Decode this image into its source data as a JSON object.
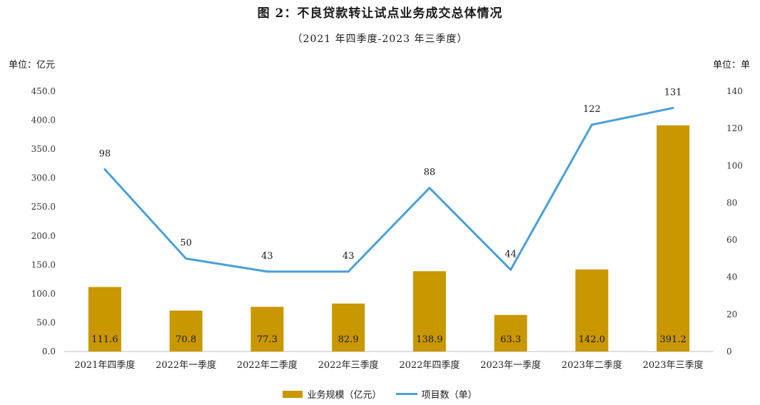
{
  "title": "图 2：不良贷款转让试点业务成交总体情况",
  "subtitle": "（2021 年四季度-2023 年三季度）",
  "unit_left": "单位：亿元",
  "unit_right": "单位：单",
  "colors": {
    "bar": "#C99700",
    "line": "#4A9FD8",
    "axis": "#BFBFBF"
  },
  "chart_data": {
    "type": "bar",
    "categories": [
      "2021年四季度",
      "2022年一季度",
      "2022年二季度",
      "2022年三季度",
      "2022年四季度",
      "2023年一季度",
      "2023年二季度",
      "2023年三季度"
    ],
    "series": [
      {
        "name": "业务规模（亿元）",
        "type": "bar",
        "axis": "left",
        "values": [
          111.6,
          70.8,
          77.3,
          82.9,
          138.9,
          63.3,
          142.0,
          391.2
        ],
        "labels": [
          "111.6",
          "70.8",
          "77.3",
          "82.9",
          "138.9",
          "63.3",
          "142.0",
          "391.2"
        ]
      },
      {
        "name": "项目数（单）",
        "type": "line",
        "axis": "right",
        "values": [
          98,
          50,
          43,
          43,
          88,
          44,
          122,
          131
        ],
        "labels": [
          "98",
          "50",
          "43",
          "43",
          "88",
          "44",
          "122",
          "131"
        ]
      }
    ],
    "y_left": {
      "ylim": [
        0,
        450
      ],
      "ticks": [
        "0.0",
        "50.0",
        "100.0",
        "150.0",
        "200.0",
        "250.0",
        "300.0",
        "350.0",
        "400.0",
        "450.0"
      ]
    },
    "y_right": {
      "ylim": [
        0,
        140
      ],
      "ticks": [
        "0",
        "20",
        "40",
        "60",
        "80",
        "100",
        "120",
        "140"
      ]
    },
    "grid": false,
    "legend": "bottom-center"
  }
}
